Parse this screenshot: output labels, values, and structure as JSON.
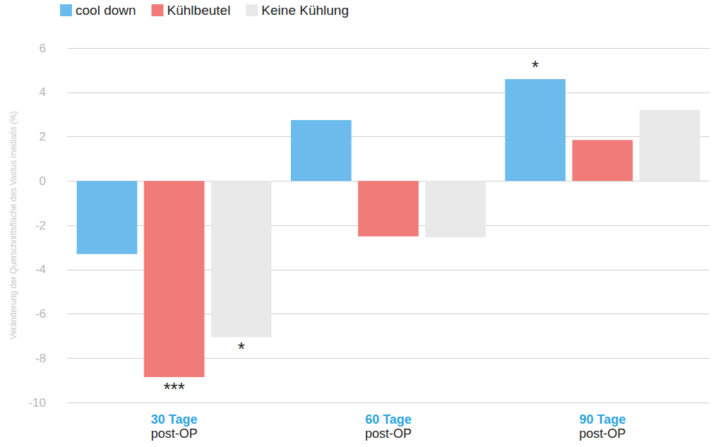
{
  "chart_data": {
    "type": "bar",
    "y_label": "Veränderung der Querschnittsfläche des Vastus medialis (%)",
    "categories": [
      "30 Tage\npost-OP",
      "60 Tage\npost-OP",
      "90 Tage\npost-OP"
    ],
    "series": [
      {
        "name": "cool down",
        "color": "#6bbcec",
        "values": [
          -3.3,
          2.75,
          4.6
        ],
        "annotations": [
          null,
          null,
          "*"
        ]
      },
      {
        "name": "Kühlbeutel",
        "color": "#f07b79",
        "values": [
          -8.85,
          -2.5,
          1.85
        ],
        "annotations": [
          "***",
          null,
          null
        ]
      },
      {
        "name": "Keine Kühlung",
        "color": "#e9e9e9",
        "values": [
          -7.05,
          -2.55,
          3.2
        ],
        "annotations": [
          "*",
          null,
          null
        ]
      }
    ],
    "ylim": [
      -10,
      6
    ],
    "yticks": [
      -10,
      -8,
      -6,
      -4,
      -2,
      0,
      2,
      4,
      6
    ],
    "grid": true,
    "legend": "top-left"
  }
}
